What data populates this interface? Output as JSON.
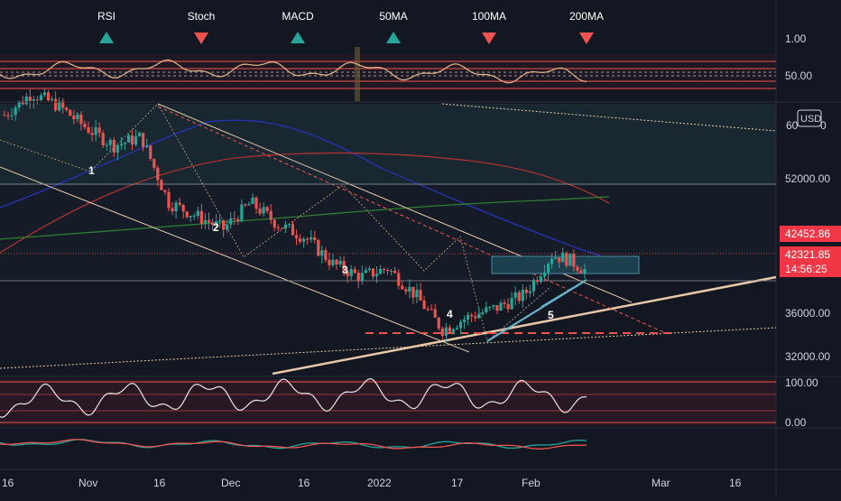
{
  "signals": [
    {
      "label": "RSI",
      "dir": "up"
    },
    {
      "label": "Stoch",
      "dir": "down"
    },
    {
      "label": "MACD",
      "dir": "up"
    },
    {
      "label": "50MA",
      "dir": "up"
    },
    {
      "label": "100MA",
      "dir": "down"
    },
    {
      "label": "200MA",
      "dir": "down"
    }
  ],
  "currency": "USD",
  "price_axis": {
    "labels": [
      "52000.00",
      "36000.00",
      "32000.00"
    ],
    "partial_label_left": "60",
    "partial_label_right": "0"
  },
  "rsi_axis": {
    "labels": [
      "1.00",
      "50.00"
    ]
  },
  "osc_axis": {
    "labels": [
      "100.00",
      "0.00"
    ]
  },
  "price_tags": {
    "last": "42452.86",
    "close": "42321.85",
    "countdown": "14:56:25"
  },
  "wave_labels": [
    "1",
    "2",
    "3",
    "4",
    "5"
  ],
  "time_axis": [
    "16",
    "Nov",
    "16",
    "Dec",
    "16",
    "2022",
    "17",
    "Feb",
    "Mar",
    "16"
  ],
  "colors": {
    "background": "#131722",
    "up": "#26a69a",
    "down": "#ef5350",
    "ma_blue": "#2431a6",
    "ma_red": "#a83232",
    "ma_green": "#2e7d32",
    "trend": "#e8c8a8",
    "tag_red": "#f23645",
    "signal_up": "#26a69a",
    "signal_down": "#ef5350"
  },
  "chart_data": {
    "type": "candlestick",
    "currency": "USD",
    "x_ticks": [
      "16",
      "Nov",
      "16",
      "Dec",
      "16",
      "2022",
      "17",
      "Feb",
      "Mar",
      "16"
    ],
    "y_ticks": [
      52000,
      36000,
      32000
    ],
    "last_price": 42452.86,
    "close_price": 42321.85,
    "waves": [
      "1",
      "2",
      "3",
      "4",
      "5"
    ],
    "price_path": [
      {
        "t": 0,
        "c": 60000
      },
      {
        "t": 5,
        "c": 62500
      },
      {
        "t": 10,
        "c": 61000
      },
      {
        "t": 15,
        "c": 58500
      },
      {
        "t": 20,
        "c": 56500
      },
      {
        "t": 25,
        "c": 57500
      },
      {
        "t": 30,
        "c": 50000
      },
      {
        "t": 35,
        "c": 48500
      },
      {
        "t": 40,
        "c": 47000
      },
      {
        "t": 45,
        "c": 50000
      },
      {
        "t": 50,
        "c": 47500
      },
      {
        "t": 55,
        "c": 46000
      },
      {
        "t": 60,
        "c": 43000
      },
      {
        "t": 65,
        "c": 41500
      },
      {
        "t": 70,
        "c": 42500
      },
      {
        "t": 75,
        "c": 39500
      },
      {
        "t": 80,
        "c": 35500
      },
      {
        "t": 85,
        "c": 37000
      },
      {
        "t": 90,
        "c": 38000
      },
      {
        "t": 95,
        "c": 39500
      },
      {
        "t": 100,
        "c": 44000
      },
      {
        "t": 103,
        "c": 43500
      },
      {
        "t": 106,
        "c": 42320
      }
    ],
    "rsi_axis": [
      "1.00",
      "50.00"
    ],
    "osc_axis": [
      "100.00",
      "0.00"
    ]
  }
}
